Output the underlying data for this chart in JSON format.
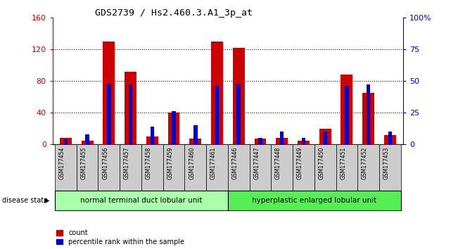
{
  "title": "GDS2739 / Hs2.460.3.A1_3p_at",
  "samples": [
    "GSM177454",
    "GSM177455",
    "GSM177456",
    "GSM177457",
    "GSM177458",
    "GSM177459",
    "GSM177460",
    "GSM177461",
    "GSM177446",
    "GSM177447",
    "GSM177448",
    "GSM177449",
    "GSM177450",
    "GSM177451",
    "GSM177452",
    "GSM177453"
  ],
  "count_values": [
    8,
    5,
    130,
    92,
    10,
    40,
    7,
    130,
    122,
    7,
    8,
    5,
    20,
    88,
    65,
    12
  ],
  "percentile_values": [
    4,
    8,
    48,
    48,
    14,
    26,
    15,
    46,
    48,
    5,
    10,
    5,
    10,
    46,
    47,
    10
  ],
  "group1_label": "normal terminal duct lobular unit",
  "group2_label": "hyperplastic enlarged lobular unit",
  "group1_count": 8,
  "group2_count": 8,
  "ylim_left": [
    0,
    160
  ],
  "ylim_right": [
    0,
    100
  ],
  "yticks_left": [
    0,
    40,
    80,
    120,
    160
  ],
  "yticks_right": [
    0,
    25,
    50,
    75,
    100
  ],
  "yticklabels_right": [
    "0",
    "25",
    "50",
    "75",
    "100%"
  ],
  "count_color": "#cc0000",
  "percentile_color": "#0000cc",
  "group1_bg": "#aaffaa",
  "group2_bg": "#55ee55",
  "tick_bg": "#cccccc",
  "legend_count": "count",
  "legend_percentile": "percentile rank within the sample",
  "disease_state_label": "disease state",
  "left_axis_color": "#cc0000",
  "right_axis_color": "#0000cc"
}
